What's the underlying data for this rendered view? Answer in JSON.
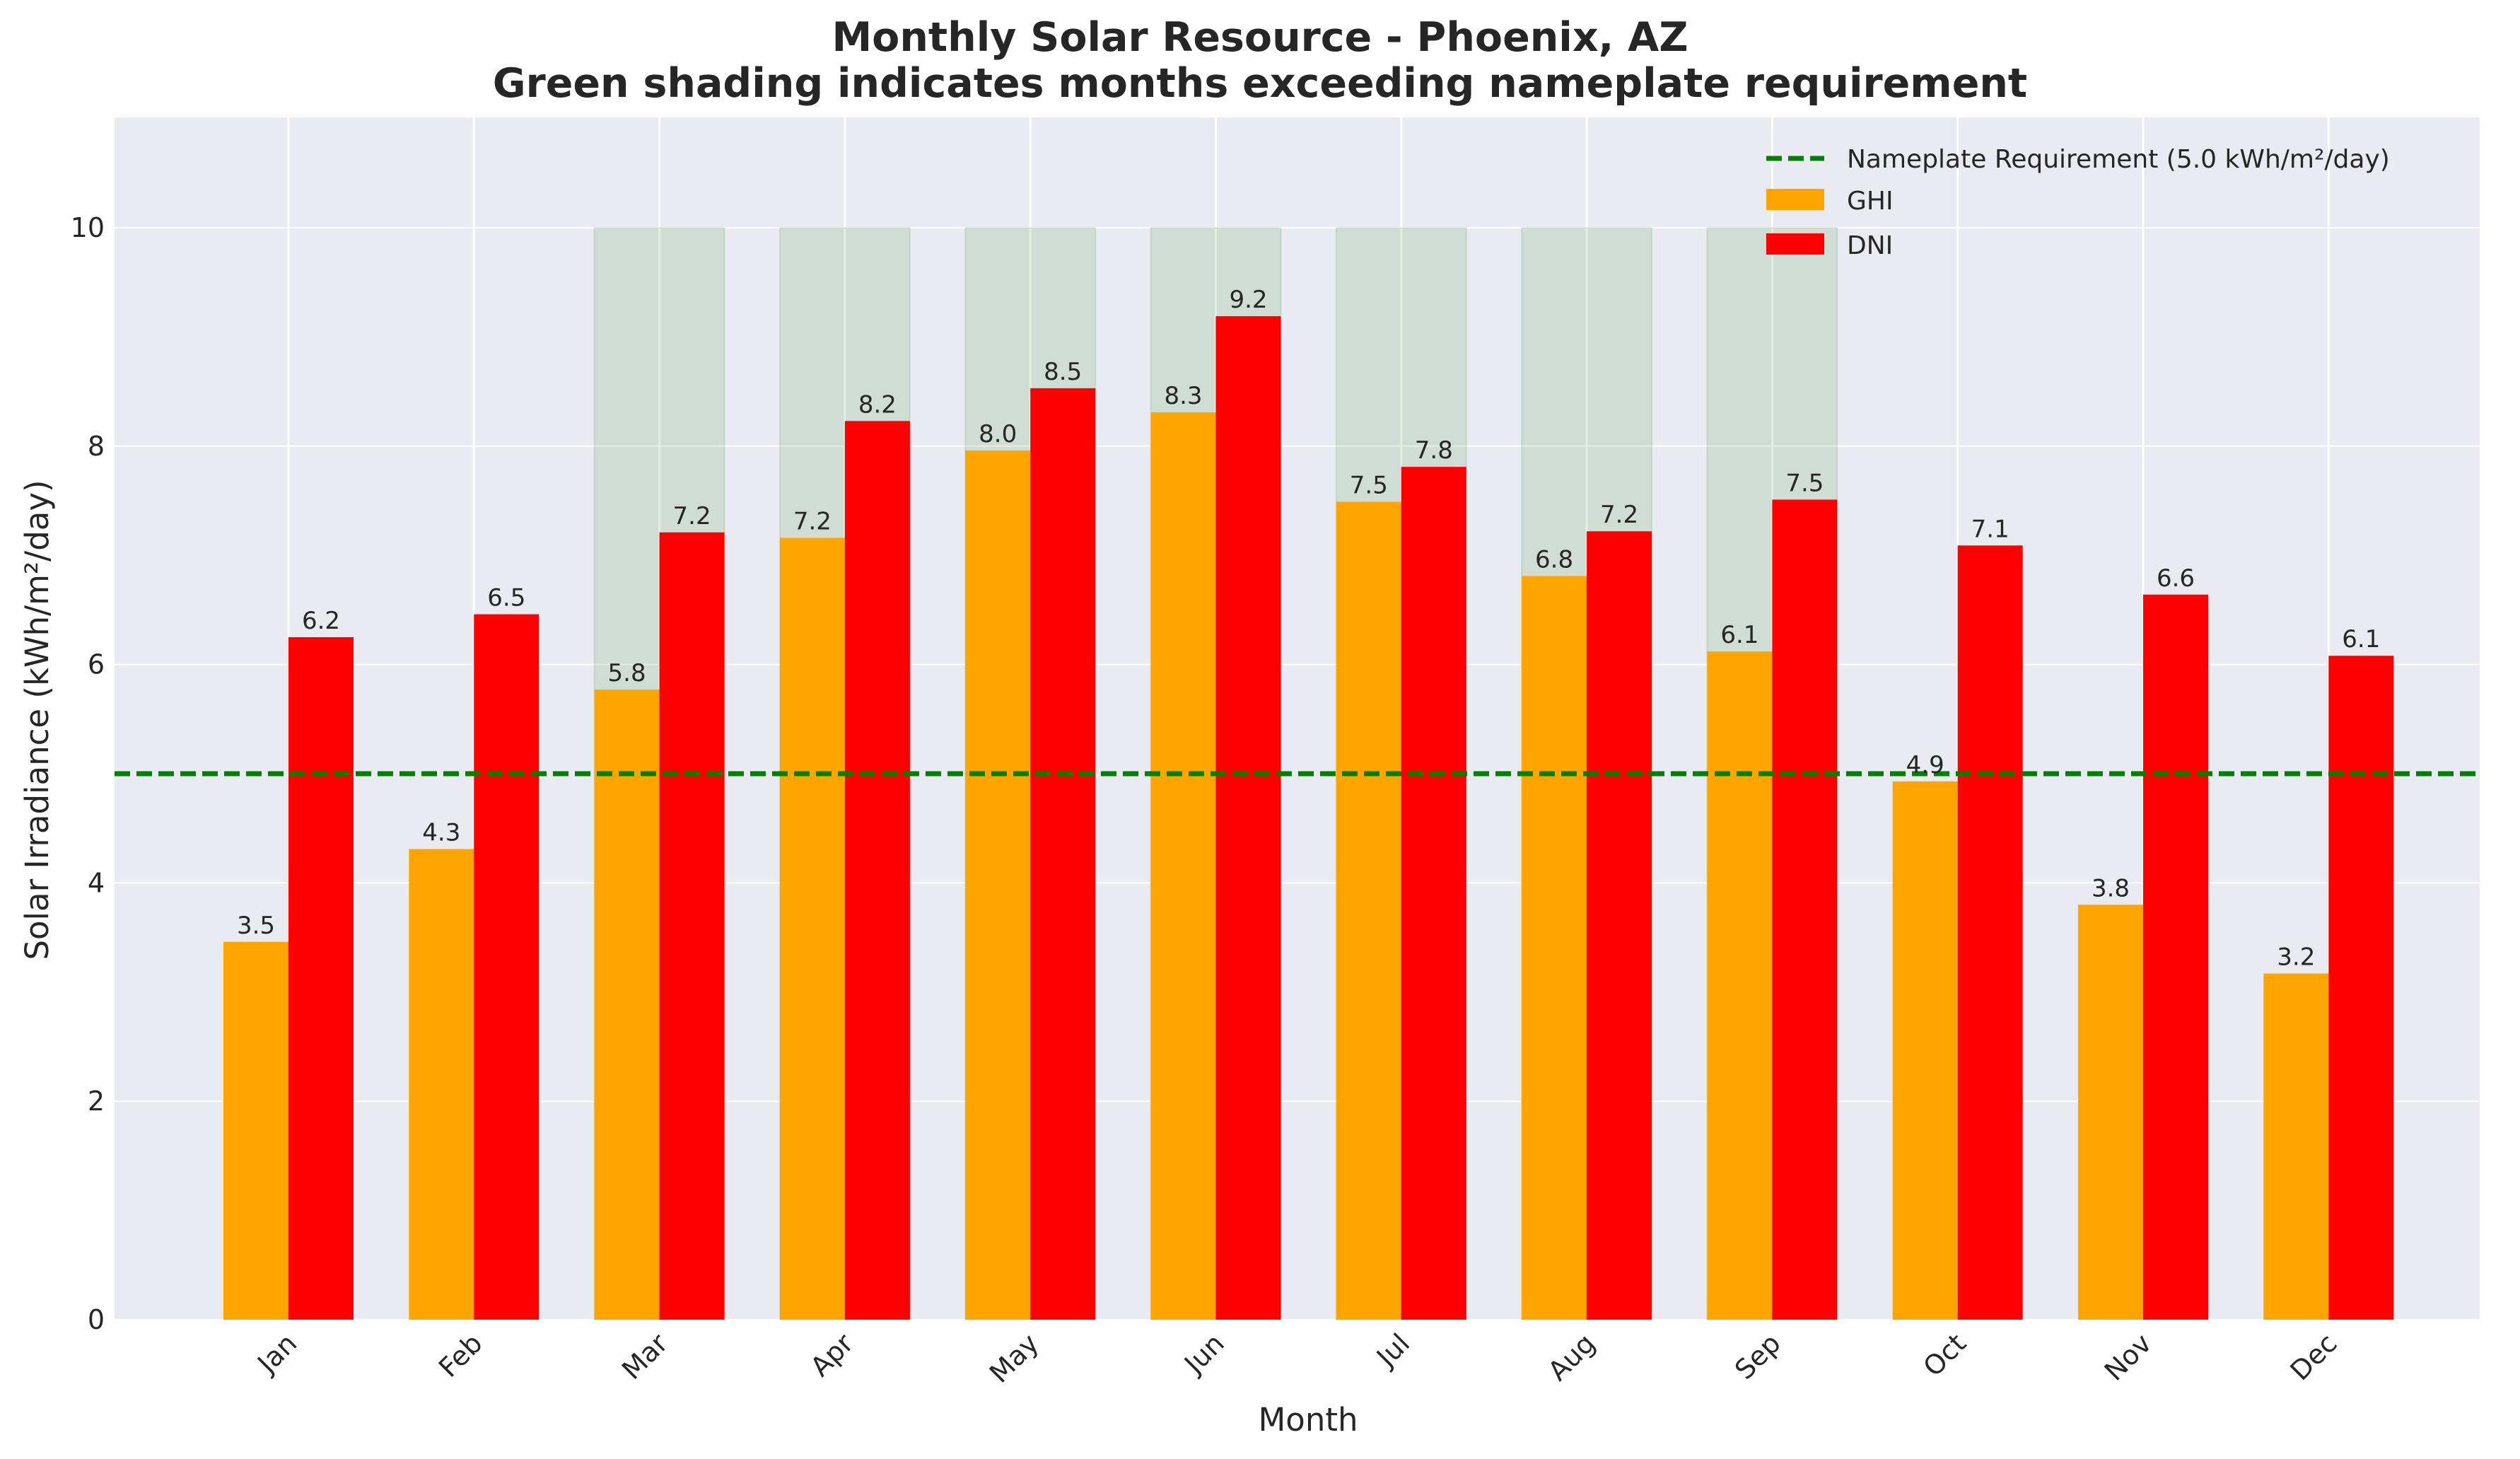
{
  "chart_data": {
    "type": "bar",
    "title": "Monthly Solar Resource - Phoenix, AZ",
    "subtitle": "Green shading indicates months exceeding nameplate requirement",
    "xlabel": "Month",
    "ylabel": "Solar Irradiance (kWh/m²/day)",
    "categories": [
      "Jan",
      "Feb",
      "Mar",
      "Apr",
      "May",
      "Jun",
      "Jul",
      "Aug",
      "Sep",
      "Oct",
      "Nov",
      "Dec"
    ],
    "series": [
      {
        "name": "GHI",
        "color": "#FFA500",
        "values": [
          3.46,
          4.31,
          5.77,
          7.16,
          7.96,
          8.31,
          7.49,
          6.81,
          6.12,
          4.93,
          3.8,
          3.17
        ],
        "labels": [
          "3.5",
          "4.3",
          "5.8",
          "7.2",
          "8.0",
          "8.3",
          "7.5",
          "6.8",
          "6.1",
          "4.9",
          "3.8",
          "3.2"
        ]
      },
      {
        "name": "DNI",
        "color": "#FF0000",
        "values": [
          6.25,
          6.46,
          7.21,
          8.23,
          8.53,
          9.19,
          7.81,
          7.22,
          7.51,
          7.09,
          6.64,
          6.08
        ],
        "labels": [
          "6.2",
          "6.5",
          "7.2",
          "8.2",
          "8.5",
          "9.2",
          "7.8",
          "7.2",
          "7.5",
          "7.1",
          "6.6",
          "6.1"
        ]
      }
    ],
    "reference_line": {
      "name": "Nameplate Requirement (5.0 kWh/m²/day)",
      "value": 5.0,
      "color": "#008000",
      "style": "dashed"
    },
    "shaded_months": [
      "Mar",
      "Apr",
      "May",
      "Jun",
      "Jul",
      "Aug",
      "Sep"
    ],
    "shade_range": [
      0,
      10
    ],
    "shade_color": "#2E8B2E",
    "ylim": [
      0,
      11
    ],
    "yticks": [
      0,
      2,
      4,
      6,
      8,
      10
    ],
    "grid": true,
    "legend_position": "top-right",
    "background": "#EAEAF2"
  }
}
